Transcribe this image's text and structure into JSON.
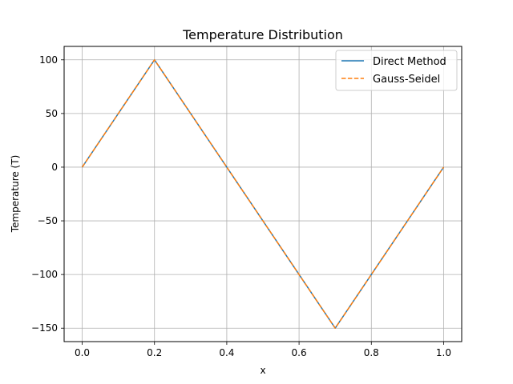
{
  "chart_data": {
    "type": "line",
    "title": "Temperature Distribution",
    "xlabel": "x",
    "ylabel": "Temperature (T)",
    "xlim": [
      -0.05,
      1.05
    ],
    "ylim": [
      -162.5,
      112.5
    ],
    "xticks": [
      0.0,
      0.2,
      0.4,
      0.6,
      0.8,
      1.0
    ],
    "xtick_labels": [
      "0.0",
      "0.2",
      "0.4",
      "0.6",
      "0.8",
      "1.0"
    ],
    "yticks": [
      -150,
      -100,
      -50,
      0,
      50,
      100
    ],
    "ytick_labels": [
      "−150",
      "−100",
      "−50",
      "0",
      "50",
      "100"
    ],
    "grid": true,
    "legend_position": "top-right",
    "series": [
      {
        "name": "Direct Method",
        "color": "#1f77b4",
        "style": "solid",
        "x": [
          0.0,
          0.2,
          0.4,
          0.7,
          1.0
        ],
        "values": [
          0,
          100,
          0,
          -150,
          0
        ]
      },
      {
        "name": "Gauss-Seidel",
        "color": "#ff7f0e",
        "style": "dashed",
        "x": [
          0.0,
          0.2,
          0.4,
          0.7,
          1.0
        ],
        "values": [
          0,
          100,
          0,
          -150,
          0
        ]
      }
    ]
  }
}
